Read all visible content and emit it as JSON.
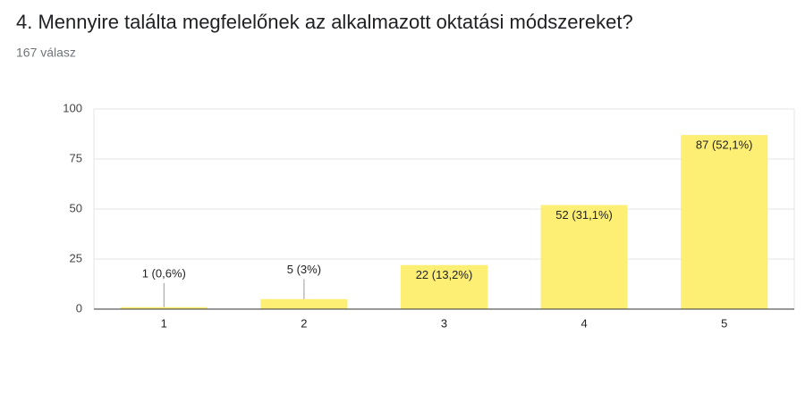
{
  "chart_data": {
    "type": "bar",
    "title": "4. Mennyire találta megfelelőnek az alkalmazott oktatási módszereket?",
    "subtitle": "167 válasz",
    "categories": [
      "1",
      "2",
      "3",
      "4",
      "5"
    ],
    "values": [
      1,
      5,
      22,
      52,
      87
    ],
    "value_labels": [
      "1 (0,6%)",
      "5 (3%)",
      "22 (13,2%)",
      "52 (31,1%)",
      "87 (52,1%)"
    ],
    "color": "#fdee74",
    "ylim": [
      0,
      100
    ],
    "yticks": [
      0,
      25,
      50,
      75,
      100
    ],
    "grid": true
  }
}
